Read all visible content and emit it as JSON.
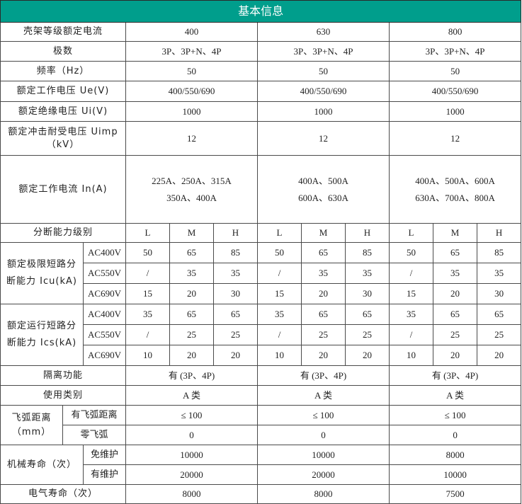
{
  "title": "基本信息",
  "colors": {
    "header_bg": "#009e8c",
    "header_text": "#ffffff",
    "border": "#4a4a4a"
  },
  "rows": {
    "frame": {
      "label": "壳架等级额定电流",
      "values": [
        "400",
        "630",
        "800"
      ]
    },
    "poles": {
      "label": "极数",
      "values": [
        "3P、3P+N、4P",
        "3P、3P+N、4P",
        "3P、3P+N、4P"
      ]
    },
    "freq": {
      "label": "频率（Hz）",
      "values": [
        "50",
        "50",
        "50"
      ]
    },
    "ue": {
      "label": "额定工作电压 Ue(V)",
      "values": [
        "400/550/690",
        "400/550/690",
        "400/550/690"
      ]
    },
    "ui": {
      "label": "额定绝缘电压 Ui(V)",
      "values": [
        "1000",
        "1000",
        "1000"
      ]
    },
    "uimp": {
      "label": "额定冲击耐受电压 Uimp（kV）",
      "values": [
        "12",
        "12",
        "12"
      ]
    },
    "in": {
      "label": "额定工作电流 In(A)",
      "values": [
        [
          "225A、250A、315A",
          "350A、400A"
        ],
        [
          "400A、500A",
          "600A、630A"
        ],
        [
          "400A、500A、600A",
          "630A、700A、800A"
        ]
      ]
    },
    "breaking_level": {
      "label": "分断能力级别",
      "levels": [
        "L",
        "M",
        "H",
        "L",
        "M",
        "H",
        "L",
        "M",
        "H"
      ]
    },
    "icu": {
      "label": "额定极限短路分断能力 Icu(kA)",
      "rows": [
        {
          "voltage": "AC400V",
          "values": [
            "50",
            "65",
            "85",
            "50",
            "65",
            "85",
            "50",
            "65",
            "85"
          ]
        },
        {
          "voltage": "AC550V",
          "values": [
            "/",
            "35",
            "35",
            "/",
            "35",
            "35",
            "/",
            "35",
            "35"
          ]
        },
        {
          "voltage": "AC690V",
          "values": [
            "15",
            "20",
            "30",
            "15",
            "20",
            "30",
            "15",
            "20",
            "30"
          ]
        }
      ]
    },
    "ics": {
      "label": "额定运行短路分断能力 Ics(kA)",
      "rows": [
        {
          "voltage": "AC400V",
          "values": [
            "35",
            "65",
            "65",
            "35",
            "65",
            "65",
            "35",
            "65",
            "65"
          ]
        },
        {
          "voltage": "AC550V",
          "values": [
            "/",
            "25",
            "25",
            "/",
            "25",
            "25",
            "/",
            "25",
            "25"
          ]
        },
        {
          "voltage": "AC690V",
          "values": [
            "10",
            "20",
            "20",
            "10",
            "20",
            "20",
            "10",
            "20",
            "20"
          ]
        }
      ]
    },
    "isolation": {
      "label": "隔离功能",
      "values": [
        "有 (3P、4P)",
        "有 (3P、4P)",
        "有 (3P、4P)"
      ]
    },
    "category": {
      "label": "使用类别",
      "values": [
        "A 类",
        "A 类",
        "A 类"
      ]
    },
    "arc": {
      "label": "飞弧距离（mm）",
      "rows": [
        {
          "label": "有飞弧距离",
          "values": [
            "≤ 100",
            "≤ 100",
            "≤ 100"
          ]
        },
        {
          "label": "零飞弧",
          "values": [
            "0",
            "0",
            "0"
          ]
        }
      ]
    },
    "mech": {
      "label": "机械寿命（次）",
      "rows": [
        {
          "label": "免维护",
          "values": [
            "10000",
            "10000",
            "8000"
          ]
        },
        {
          "label": "有维护",
          "values": [
            "20000",
            "20000",
            "10000"
          ]
        }
      ]
    },
    "elec": {
      "label": "电气寿命（次）",
      "values": [
        "8000",
        "8000",
        "7500"
      ]
    }
  }
}
